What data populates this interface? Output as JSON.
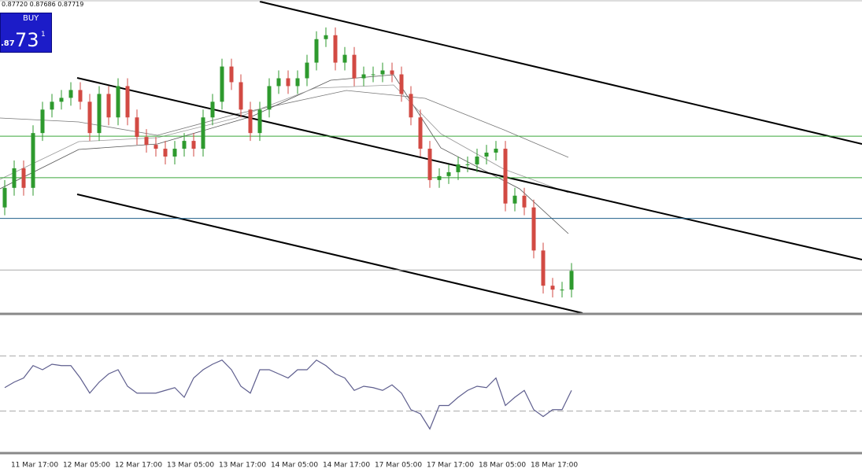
{
  "chart_data": [
    {
      "type": "candlestick",
      "open": [
        0.878,
        0.87825,
        0.8785,
        0.87825,
        0.87895,
        0.87925,
        0.87935,
        0.8794,
        0.8795,
        0.87935,
        0.87895,
        0.87945,
        0.87915,
        0.87955,
        0.87915,
        0.8789,
        0.8788,
        0.87875,
        0.87865,
        0.87875,
        0.87885,
        0.87875,
        0.87915,
        0.87935,
        0.8798,
        0.8796,
        0.87925,
        0.87895,
        0.87925,
        0.87955,
        0.87965,
        0.87955,
        0.87965,
        0.87985,
        0.88015,
        0.8802,
        0.87985,
        0.87995,
        0.87965,
        0.8797,
        0.8797,
        0.87975,
        0.8797,
        0.87945,
        0.87915,
        0.87875,
        0.87835,
        0.8784,
        0.87845,
        0.87855,
        0.87855,
        0.87865,
        0.8787,
        0.87875,
        0.87805,
        0.87815,
        0.878,
        0.87745,
        0.877,
        0.87695,
        0.87695
      ],
      "high": [
        0.87835,
        0.8786,
        0.8786,
        0.87905,
        0.87935,
        0.87945,
        0.8795,
        0.8796,
        0.8796,
        0.87945,
        0.87955,
        0.87955,
        0.87965,
        0.87965,
        0.87925,
        0.879,
        0.8789,
        0.87885,
        0.87885,
        0.87895,
        0.87895,
        0.87925,
        0.87945,
        0.8799,
        0.8799,
        0.8797,
        0.87935,
        0.87935,
        0.87965,
        0.87975,
        0.87975,
        0.87975,
        0.87995,
        0.88025,
        0.8803,
        0.8803,
        0.88005,
        0.88005,
        0.8798,
        0.8798,
        0.87985,
        0.87985,
        0.8798,
        0.87955,
        0.87925,
        0.87885,
        0.8785,
        0.87855,
        0.87865,
        0.87865,
        0.87875,
        0.8788,
        0.87885,
        0.87885,
        0.87825,
        0.87825,
        0.8781,
        0.87755,
        0.8771,
        0.87705,
        0.87729
      ],
      "low": [
        0.8779,
        0.87815,
        0.87815,
        0.87815,
        0.87885,
        0.87915,
        0.87925,
        0.8793,
        0.87925,
        0.87885,
        0.87885,
        0.87905,
        0.87905,
        0.87905,
        0.8788,
        0.8787,
        0.87865,
        0.87855,
        0.87855,
        0.87865,
        0.87865,
        0.87865,
        0.87905,
        0.87925,
        0.8795,
        0.87915,
        0.87885,
        0.87885,
        0.87915,
        0.87945,
        0.87945,
        0.87945,
        0.87955,
        0.87975,
        0.88005,
        0.87975,
        0.87975,
        0.87955,
        0.87955,
        0.8796,
        0.8796,
        0.8796,
        0.87935,
        0.87905,
        0.87865,
        0.87825,
        0.87825,
        0.8783,
        0.87835,
        0.87845,
        0.87845,
        0.87855,
        0.8786,
        0.87795,
        0.87795,
        0.8779,
        0.87735,
        0.8769,
        0.87685,
        0.87685,
        0.87685
      ],
      "close": [
        0.87825,
        0.8785,
        0.87825,
        0.87895,
        0.87925,
        0.87935,
        0.8794,
        0.8795,
        0.87935,
        0.87895,
        0.87945,
        0.87915,
        0.87955,
        0.87915,
        0.8789,
        0.8788,
        0.87875,
        0.87865,
        0.87875,
        0.87885,
        0.87875,
        0.87915,
        0.87935,
        0.8798,
        0.8796,
        0.87925,
        0.87895,
        0.87925,
        0.87955,
        0.87965,
        0.87955,
        0.87965,
        0.87985,
        0.88015,
        0.8802,
        0.87985,
        0.87995,
        0.87965,
        0.8797,
        0.8797,
        0.87975,
        0.8797,
        0.87945,
        0.87915,
        0.87875,
        0.87835,
        0.8784,
        0.87845,
        0.87855,
        0.87855,
        0.87865,
        0.8787,
        0.87875,
        0.87805,
        0.87815,
        0.878,
        0.87745,
        0.877,
        0.87695,
        0.87695,
        0.87719
      ],
      "ylim": [
        0.87665,
        0.88065
      ],
      "up_color": "#2e9a2e",
      "down_color": "#d24a43",
      "hlines": [
        {
          "value": 0.87891,
          "color": "#3aa83a"
        },
        {
          "value": 0.87838,
          "color": "#3aa83a"
        },
        {
          "value": 0.87786,
          "color": "#1f5f8a"
        },
        {
          "value": 0.8772,
          "color": "#aaaaaa"
        }
      ],
      "x_labels": [
        "11 Mar 17:00",
        "12 Mar 05:00",
        "12 Mar 17:00",
        "13 Mar 05:00",
        "13 Mar 17:00",
        "14 Mar 05:00",
        "14 Mar 17:00",
        "17 Mar 05:00",
        "17 Mar 17:00",
        "18 Mar 05:00",
        "18 Mar 17:00"
      ]
    },
    {
      "type": "line",
      "values": [
        47,
        51,
        54,
        63,
        60,
        64,
        63,
        63,
        54,
        43,
        51,
        57,
        60,
        48,
        43,
        43,
        43,
        45,
        47,
        40,
        54,
        60,
        64,
        67,
        60,
        48,
        43,
        60,
        60,
        57,
        54,
        60,
        60,
        67,
        63,
        57,
        54,
        45,
        48,
        47,
        45,
        49,
        43,
        31,
        28,
        17,
        34,
        34,
        40,
        45,
        48,
        47,
        54,
        34,
        40,
        45,
        31,
        26,
        31,
        31,
        45
      ],
      "ylim": [
        0,
        100
      ],
      "levels": [
        70,
        30
      ],
      "color": "#5e5e8e"
    }
  ],
  "trade_panel": {
    "quote": "0.87720 0.87686 0.87719",
    "button": "BUY",
    "price_small": ".87",
    "price_big": "73",
    "price_sup": "1"
  }
}
